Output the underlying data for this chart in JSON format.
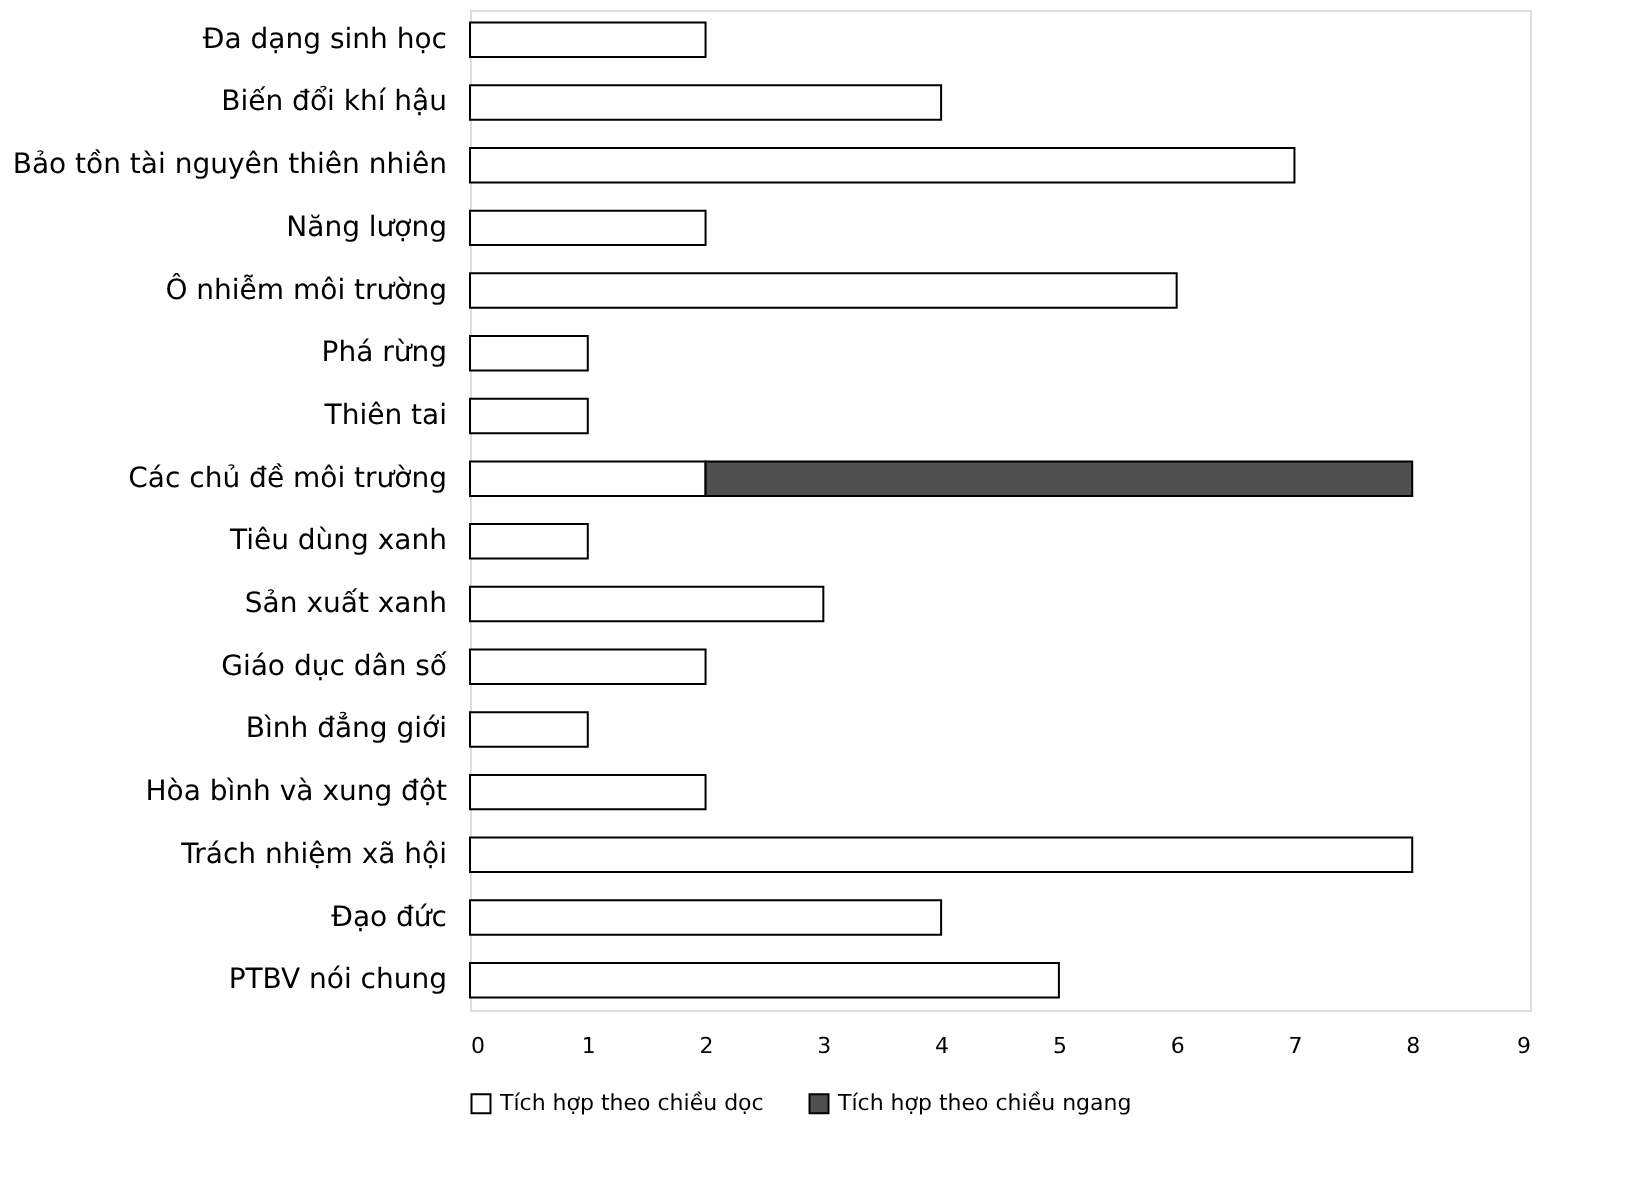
{
  "chart_data": {
    "type": "bar",
    "orientation": "horizontal",
    "stacked": true,
    "categories": [
      "Đa dạng sinh học",
      "Biến đổi khí hậu",
      "Bảo tồn tài nguyên thiên nhiên",
      "Năng lượng",
      "Ô nhiễm môi trường",
      "Phá rừng",
      "Thiên tai",
      "Các chủ đề môi trường",
      "Tiêu dùng xanh",
      "Sản xuất xanh",
      "Giáo dục dân số",
      "Bình đẳng giới",
      "Hòa bình và xung đột",
      "Trách nhiệm xã hội",
      "Đạo đức",
      "PTBV nói chung"
    ],
    "series": [
      {
        "name": "Tích hợp theo chiều dọc",
        "color": "#ffffff",
        "values": [
          2,
          4,
          7,
          2,
          6,
          1,
          1,
          2,
          1,
          3,
          2,
          1,
          2,
          8,
          4,
          5
        ]
      },
      {
        "name": "Tích hợp theo chiều ngang",
        "color": "#505050",
        "values": [
          null,
          null,
          null,
          null,
          null,
          null,
          null,
          6,
          null,
          null,
          null,
          null,
          null,
          null,
          null,
          null
        ]
      }
    ],
    "xlim": [
      0,
      9
    ],
    "xticks": [
      0,
      1,
      2,
      3,
      4,
      5,
      6,
      7,
      8,
      9
    ],
    "grid": false,
    "legend": "bottom"
  }
}
